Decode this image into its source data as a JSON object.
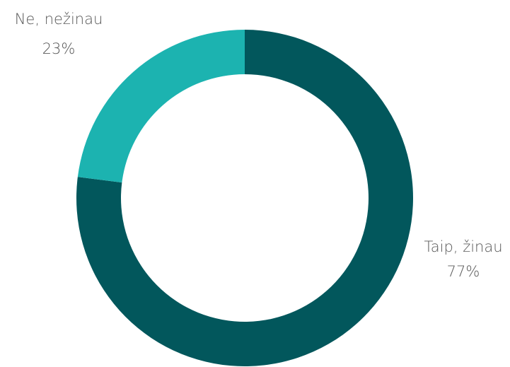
{
  "chart_data": {
    "type": "donut",
    "categories": [
      "Taip, žinau",
      "Ne, nežinau"
    ],
    "values": [
      77,
      23
    ],
    "value_labels": [
      "77%",
      "23%"
    ],
    "colors": [
      "#02575c",
      "#1cb3b0"
    ]
  }
}
